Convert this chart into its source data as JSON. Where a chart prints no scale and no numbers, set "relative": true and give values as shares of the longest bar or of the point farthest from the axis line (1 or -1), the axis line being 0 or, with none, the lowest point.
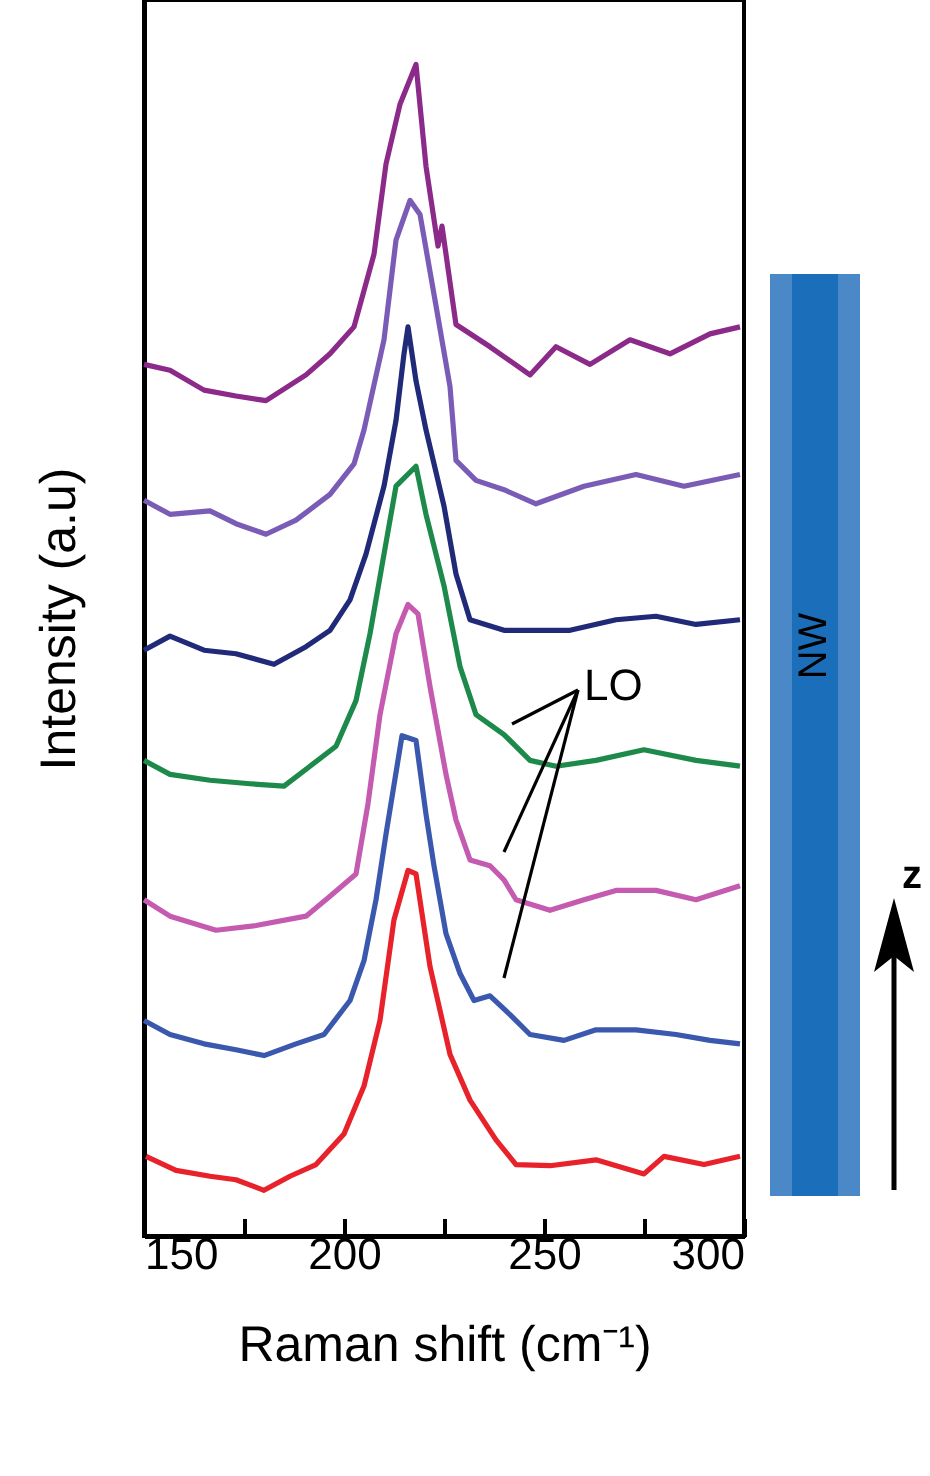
{
  "chart_data": {
    "type": "line",
    "relative": true,
    "xlabel": "Raman shift (cm⁻¹)",
    "ylabel": "Intensity (a.u)",
    "xlim": [
      150,
      300
    ],
    "xticks": [
      150,
      {
        "value": 175,
        "label": null
      },
      200,
      {
        "value": 225,
        "label": null
      },
      250,
      {
        "value": 275,
        "label": null
      },
      300
    ],
    "grid": false,
    "marker": "none",
    "line_style": "solid",
    "annotations": [
      "LO",
      "NW",
      "z"
    ],
    "series": [
      {
        "color": "#8c2a8a",
        "x": [
          150,
          156.5,
          165,
          173,
          180.5,
          190.5,
          196.5,
          202.5,
          207.5,
          210.5,
          214,
          218,
          220.5,
          223.5,
          224.5,
          228,
          236.5,
          246.5,
          253,
          261.5,
          271.5,
          281.5,
          291.5,
          299
        ],
        "values": [
          0.744,
          0.739,
          0.722,
          0.717,
          0.713,
          0.735,
          0.753,
          0.776,
          0.838,
          0.915,
          0.966,
          1,
          0.913,
          0.845,
          0.862,
          0.778,
          0.759,
          0.735,
          0.759,
          0.744,
          0.765,
          0.753,
          0.77,
          0.776
        ]
      },
      {
        "color": "#7a5cb6",
        "x": [
          150,
          156.5,
          166.5,
          173,
          180.5,
          188,
          196.5,
          202.5,
          205,
          210,
          213,
          216.5,
          219,
          223,
          226.5,
          228,
          233,
          240,
          248,
          260,
          273,
          285,
          299
        ],
        "values": [
          0.628,
          0.616,
          0.619,
          0.608,
          0.599,
          0.611,
          0.633,
          0.659,
          0.688,
          0.765,
          0.85,
          0.884,
          0.872,
          0.794,
          0.725,
          0.662,
          0.645,
          0.637,
          0.625,
          0.64,
          0.65,
          0.64,
          0.65
        ]
      },
      {
        "color": "#202a78",
        "x": [
          150,
          156.5,
          165,
          173,
          182.5,
          190.5,
          196.5,
          201.5,
          205.5,
          210,
          213,
          215,
          216,
          218,
          220.5,
          225,
          228,
          231.5,
          240,
          248,
          256.5,
          268,
          278,
          288,
          299
        ],
        "values": [
          0.5,
          0.512,
          0.5,
          0.497,
          0.488,
          0.503,
          0.517,
          0.543,
          0.582,
          0.64,
          0.696,
          0.753,
          0.776,
          0.73,
          0.688,
          0.623,
          0.565,
          0.526,
          0.517,
          0.517,
          0.517,
          0.526,
          0.529,
          0.522,
          0.526
        ]
      },
      {
        "color": "#1d8a4c",
        "x": [
          150,
          156.5,
          166.5,
          176.5,
          185,
          191.5,
          198,
          203,
          206.5,
          210,
          213,
          218,
          220.5,
          225,
          229,
          233,
          240,
          246.5,
          253,
          263,
          275,
          288,
          299
        ],
        "values": [
          0.406,
          0.394,
          0.389,
          0.386,
          0.384,
          0.401,
          0.418,
          0.457,
          0.514,
          0.582,
          0.64,
          0.657,
          0.616,
          0.555,
          0.486,
          0.445,
          0.428,
          0.406,
          0.401,
          0.406,
          0.415,
          0.406,
          0.401
        ]
      },
      {
        "color": "#c45bb0",
        "x": [
          150,
          156.5,
          168,
          178,
          190.5,
          196.5,
          203,
          206,
          209,
          213,
          216,
          218.5,
          221.5,
          225.5,
          228,
          231.5,
          236.5,
          240,
          243,
          251.5,
          260,
          268,
          278,
          288,
          299
        ],
        "values": [
          0.287,
          0.273,
          0.261,
          0.265,
          0.273,
          0.29,
          0.309,
          0.369,
          0.445,
          0.514,
          0.539,
          0.531,
          0.469,
          0.394,
          0.355,
          0.321,
          0.316,
          0.304,
          0.287,
          0.278,
          0.287,
          0.295,
          0.295,
          0.287,
          0.299
        ]
      },
      {
        "color": "#3a58ad",
        "x": [
          150,
          156.5,
          165,
          173,
          180,
          188,
          195,
          201.5,
          205,
          208,
          210.5,
          214.5,
          218,
          220.5,
          222.5,
          225.5,
          229,
          232.5,
          236.5,
          241.5,
          246.5,
          255,
          263,
          273,
          283,
          291.5,
          299
        ],
        "values": [
          0.184,
          0.172,
          0.164,
          0.159,
          0.154,
          0.164,
          0.172,
          0.201,
          0.235,
          0.287,
          0.343,
          0.427,
          0.423,
          0.36,
          0.316,
          0.258,
          0.224,
          0.201,
          0.205,
          0.189,
          0.172,
          0.167,
          0.176,
          0.176,
          0.172,
          0.167,
          0.164
        ]
      },
      {
        "color": "#e8222b",
        "x": [
          150.5,
          158,
          166.5,
          173,
          180,
          186.5,
          193,
          200,
          205,
          209,
          212.5,
          216,
          218,
          221.5,
          226.5,
          231.5,
          238,
          243,
          251.5,
          263,
          275,
          280,
          290,
          299
        ],
        "values": [
          0.068,
          0.056,
          0.051,
          0.048,
          0.039,
          0.051,
          0.061,
          0.087,
          0.128,
          0.184,
          0.27,
          0.312,
          0.309,
          0.23,
          0.155,
          0.116,
          0.082,
          0.061,
          0.06,
          0.065,
          0.053,
          0.068,
          0.061,
          0.068
        ]
      }
    ]
  }
}
